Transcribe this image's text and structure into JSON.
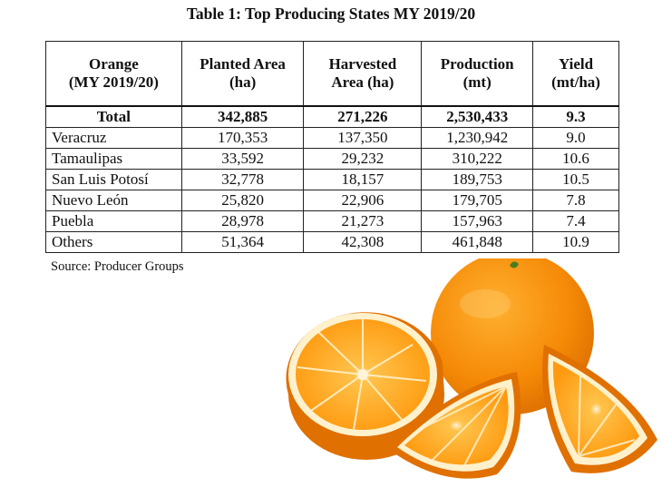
{
  "table": {
    "title": "Table 1: Top Producing States MY 2019/20",
    "headers": [
      [
        "Orange",
        "(MY 2019/20)"
      ],
      [
        "Planted Area",
        "(ha)"
      ],
      [
        "Harvested",
        "Area (ha)"
      ],
      [
        "Production",
        "(mt)"
      ],
      [
        "Yield",
        "(mt/ha)"
      ]
    ],
    "total": [
      "Total",
      "342,885",
      "271,226",
      "2,530,433",
      "9.3"
    ],
    "rows": [
      [
        "Veracruz",
        "170,353",
        "137,350",
        "1,230,942",
        "9.0"
      ],
      [
        "Tamaulipas",
        "33,592",
        "29,232",
        "310,222",
        "10.6"
      ],
      [
        "San Luis Potosí",
        "32,778",
        "18,157",
        "189,753",
        "10.5"
      ],
      [
        "Nuevo León",
        "25,820",
        "22,906",
        "179,705",
        "7.8"
      ],
      [
        "Puebla",
        "28,978",
        "21,273",
        "157,963",
        "7.4"
      ],
      [
        "Others",
        "51,364",
        "42,308",
        "461,848",
        "10.9"
      ]
    ],
    "source": "Source: Producer Groups"
  },
  "image": {
    "icon": "orange-fruit-icon",
    "colors": {
      "peel": "#f58a07",
      "peel_dark": "#e07000",
      "flesh": "#ffa41c",
      "pith": "#fff1cc",
      "stem": "#4b7d1e"
    }
  }
}
